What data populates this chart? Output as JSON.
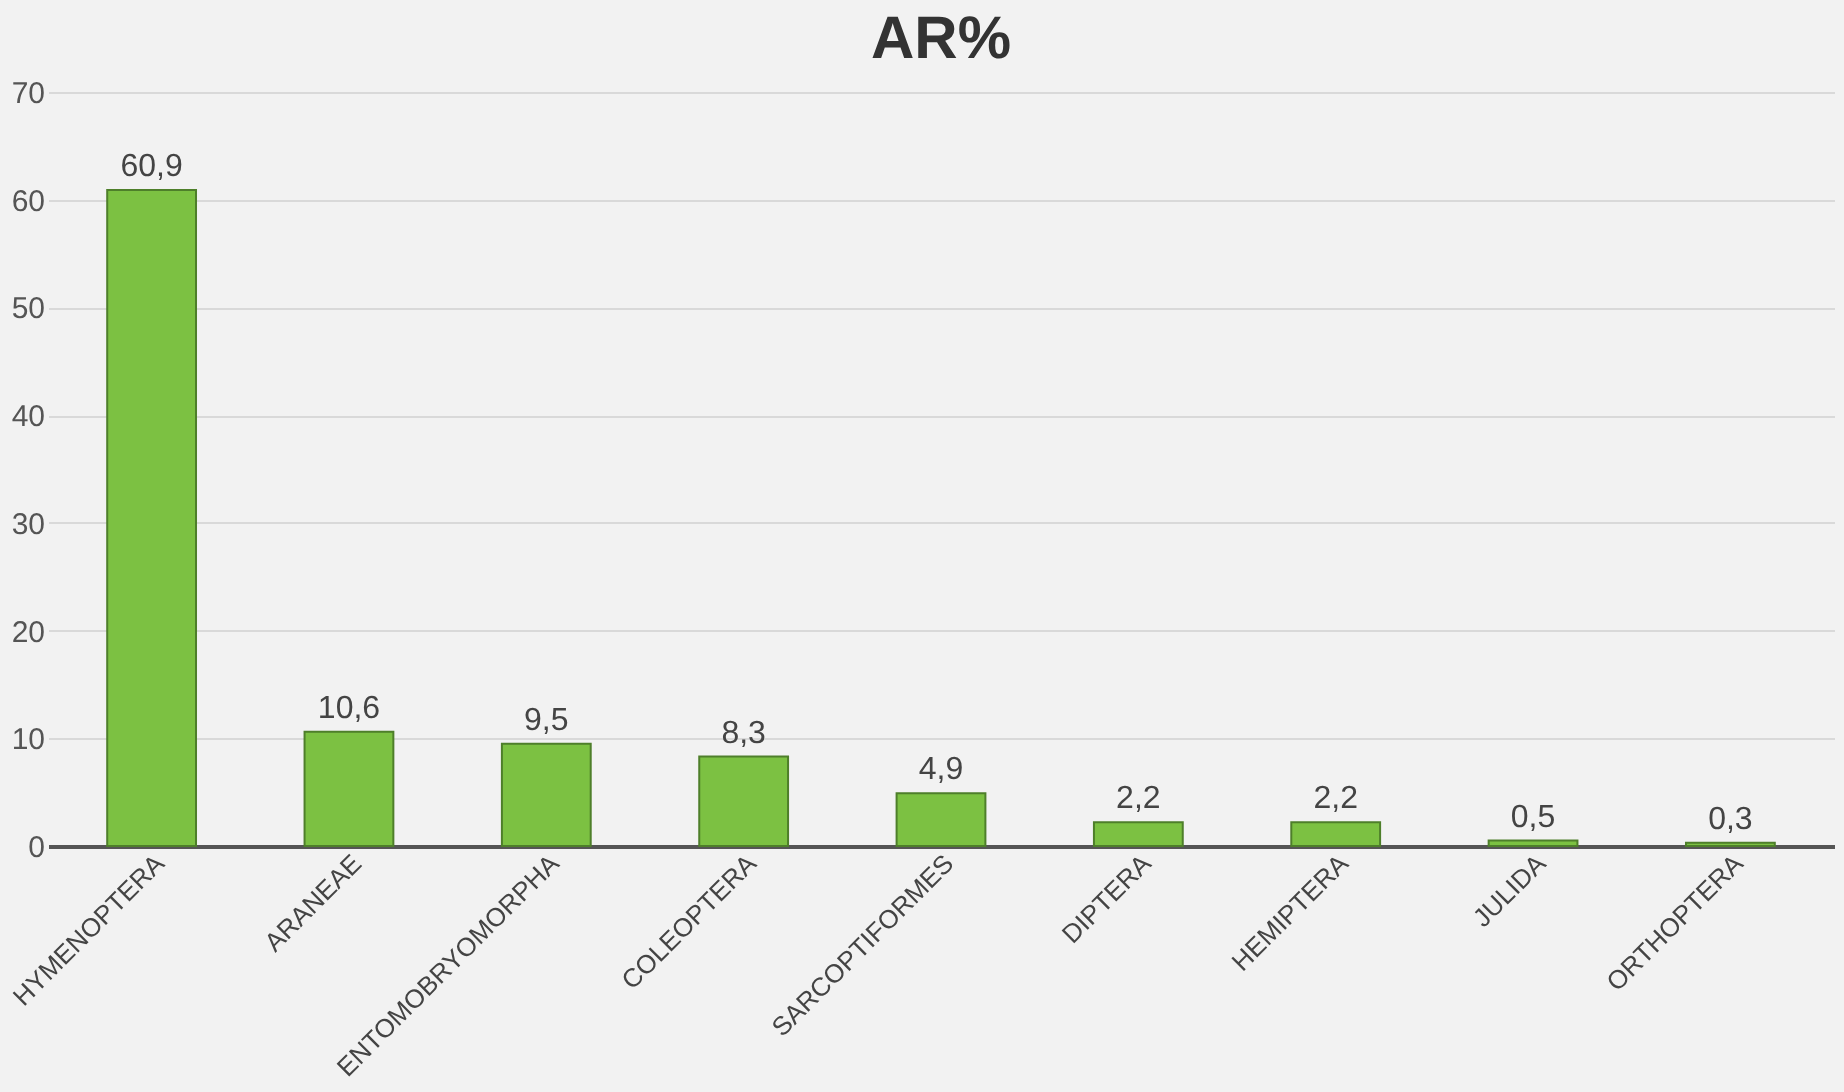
{
  "chart_data": {
    "type": "bar",
    "title": "AR%",
    "categories": [
      "HYMENOPTERA",
      "ARANEAE",
      "ENTOMOBRYOMORPHA",
      "COLEOPTERA",
      "SARCOPTIFORMES",
      "DIPTERA",
      "HEMIPTERA",
      "JULIDA",
      "ORTHOPTERA"
    ],
    "values": [
      60.9,
      10.6,
      9.5,
      8.3,
      4.9,
      2.2,
      2.2,
      0.5,
      0.3
    ],
    "value_labels": [
      "60,9",
      "10,6",
      "9,5",
      "8,3",
      "4,9",
      "2,2",
      "2,2",
      "0,5",
      "0,3"
    ],
    "color": "#7cc142",
    "ylim": [
      0,
      70
    ],
    "yticks": [
      0,
      10,
      20,
      30,
      40,
      50,
      60,
      70
    ],
    "grid": "y"
  }
}
